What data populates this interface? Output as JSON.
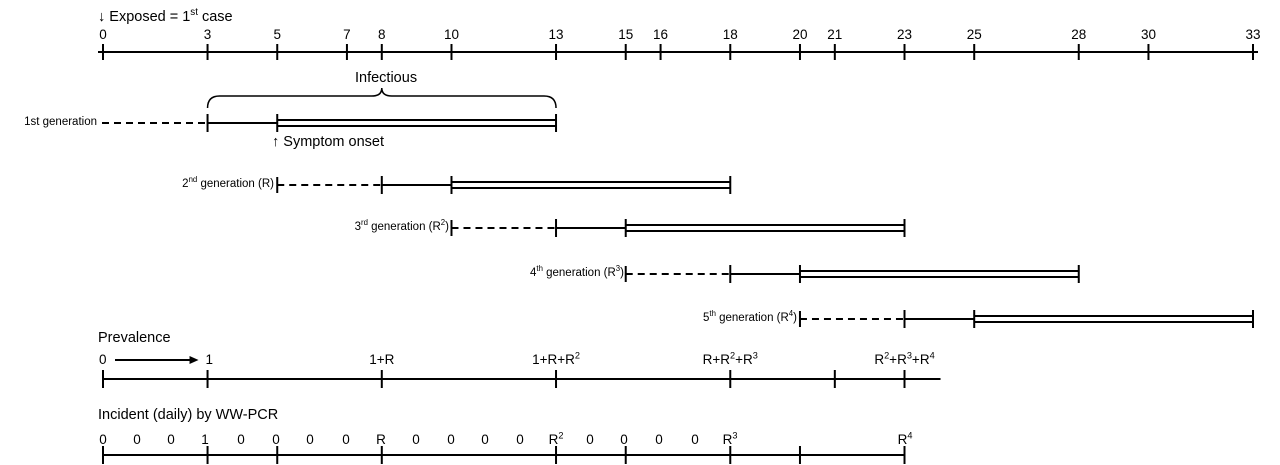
{
  "header": {
    "exposed_prefix": "↓ Exposed = 1",
    "exposed_sup": "st",
    "exposed_suffix": " case"
  },
  "timeline": {
    "ticks": [
      0,
      3,
      5,
      7,
      8,
      10,
      13,
      15,
      16,
      18,
      20,
      21,
      23,
      25,
      28,
      30,
      33
    ]
  },
  "generations": [
    {
      "label_pre": "1st generation",
      "label_sup": "",
      "label_post": "",
      "exposed": 0,
      "infectious_start": 3,
      "symptom_onset": 5,
      "end": 13
    },
    {
      "label_pre": "2",
      "label_sup": "nd",
      "label_post": " generation (R)",
      "exposed": 5,
      "infectious_start": 8,
      "symptom_onset": 10,
      "end": 18
    },
    {
      "label_pre": "3",
      "label_sup": "rd",
      "label_post": " generation (R",
      "label_sup2": "2",
      "label_post2": ")",
      "exposed": 10,
      "infectious_start": 13,
      "symptom_onset": 15,
      "end": 23
    },
    {
      "label_pre": "4",
      "label_sup": "th",
      "label_post": " generation (R",
      "label_sup2": "3",
      "label_post2": ")",
      "exposed": 15,
      "infectious_start": 18,
      "symptom_onset": 20,
      "end": 28
    },
    {
      "label_pre": "5",
      "label_sup": "th",
      "label_post": " generation (R",
      "label_sup2": "4",
      "label_post2": ")",
      "exposed": 20,
      "infectious_start": 23,
      "symptom_onset": 25,
      "end": 33
    }
  ],
  "annotations": {
    "infectious": "Infectious",
    "symptom_onset": "↑ Symptom onset"
  },
  "prevalence": {
    "title": "Prevalence",
    "ticks": [
      0,
      3,
      8,
      13,
      18,
      21,
      23
    ],
    "labels": [
      {
        "day": 0,
        "text": "0"
      },
      {
        "day": 3,
        "text": "1"
      },
      {
        "day": 8,
        "text": "1+R"
      },
      {
        "day": 13,
        "text": "1+R+R",
        "sup": "2"
      },
      {
        "day": 18,
        "text": "R+R",
        "sup": "2",
        "text2": "+R",
        "sup2": "3"
      },
      {
        "day": 23,
        "text": "R",
        "sup": "2",
        "text2": "+R",
        "sup2": "3",
        "text3": "+R",
        "sup3": "4"
      }
    ]
  },
  "incident": {
    "title": "Incident (daily) by WW-PCR",
    "ticks": [
      0,
      3,
      5,
      8,
      13,
      15,
      18,
      20,
      23
    ],
    "values": [
      {
        "text": "0"
      },
      {
        "text": "0"
      },
      {
        "text": "0"
      },
      {
        "text": "1"
      },
      {
        "text": "0"
      },
      {
        "text": "0"
      },
      {
        "text": "0"
      },
      {
        "text": "0"
      },
      {
        "text": "R"
      },
      {
        "text": "0"
      },
      {
        "text": "0"
      },
      {
        "text": "0"
      },
      {
        "text": "0"
      },
      {
        "text": "R",
        "sup": "2"
      },
      {
        "text": "0"
      },
      {
        "text": "0"
      },
      {
        "text": "0"
      },
      {
        "text": "0"
      },
      {
        "text": "R",
        "sup": "3"
      },
      {
        "text": "R",
        "sup": "4"
      }
    ]
  }
}
